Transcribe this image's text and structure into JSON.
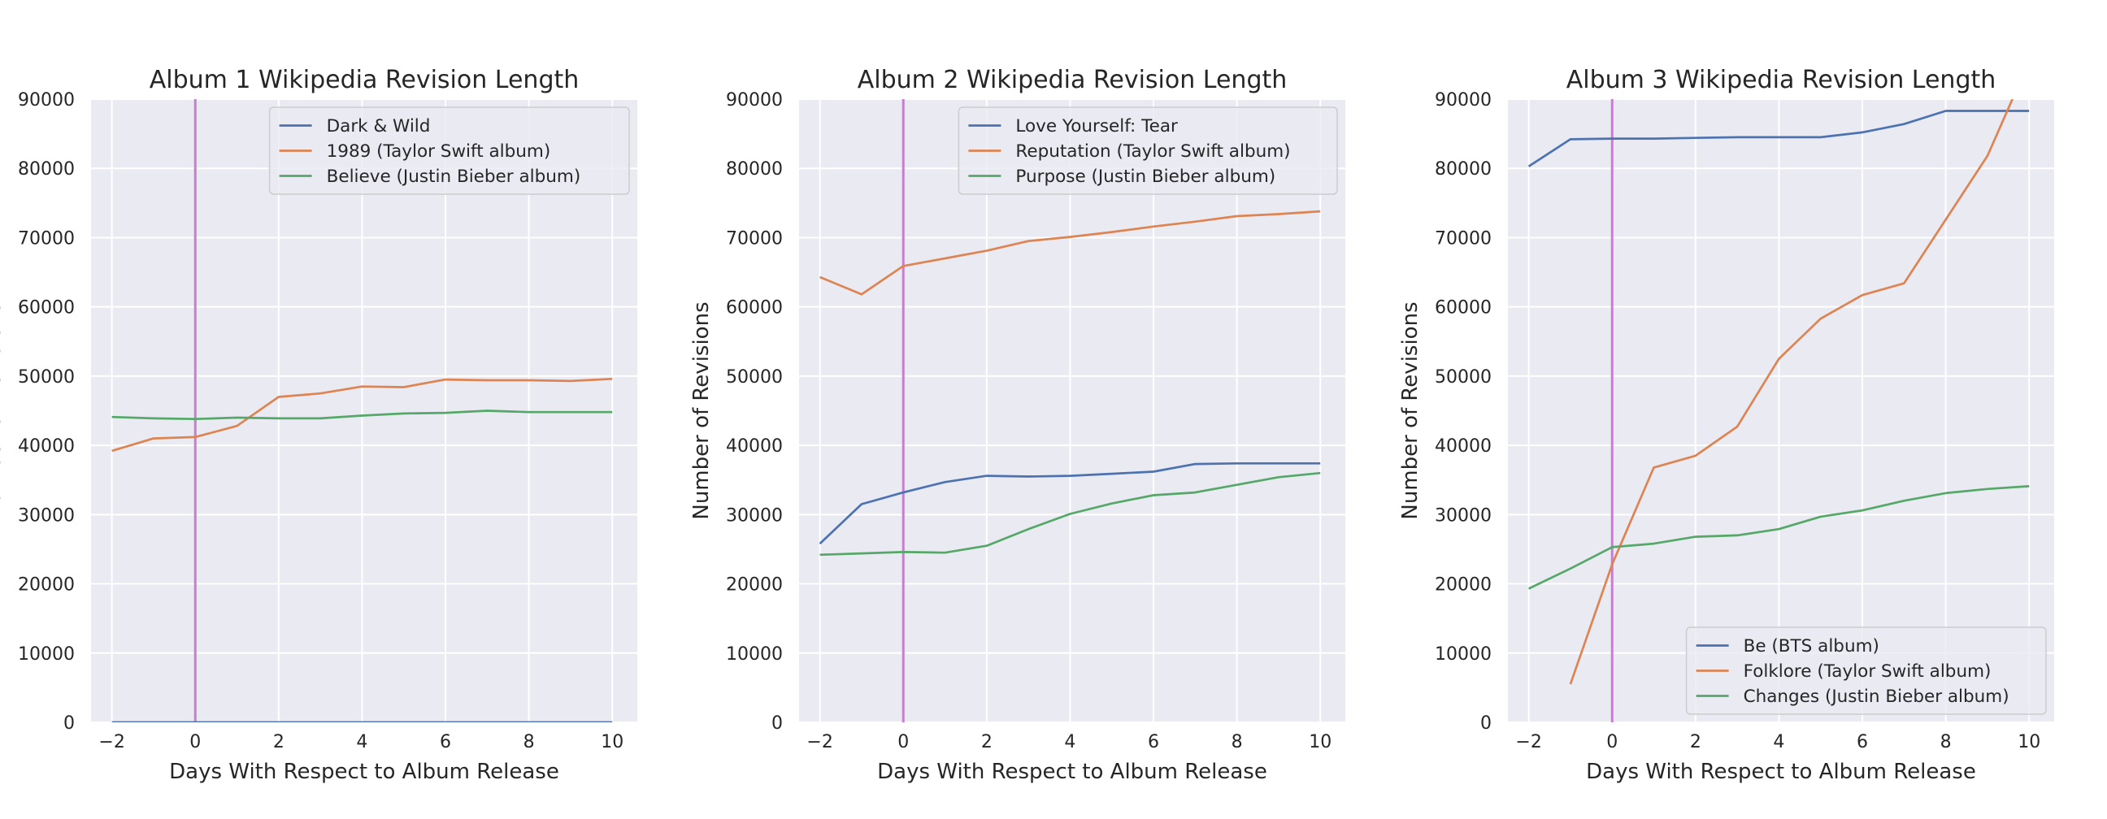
{
  "chart_data": [
    {
      "type": "line",
      "title": "Album 1 Wikipedia Revision Length",
      "xlabel": "Days With Respect to Album Release",
      "ylabel": "Number of Revisions",
      "xlim": [
        -2.5,
        10.6
      ],
      "ylim": [
        0,
        90000
      ],
      "xticks": [
        -2,
        0,
        2,
        4,
        6,
        8,
        10
      ],
      "xtick_labels": [
        "−2",
        "0",
        "2",
        "4",
        "6",
        "8",
        "10"
      ],
      "yticks": [
        0,
        10000,
        20000,
        30000,
        40000,
        50000,
        60000,
        70000,
        80000,
        90000
      ],
      "ytick_labels": [
        "0",
        "10000",
        "20000",
        "30000",
        "40000",
        "50000",
        "60000",
        "70000",
        "80000",
        "90000"
      ],
      "vline": {
        "x": 0,
        "color": "#c67fcf"
      },
      "grid": true,
      "legend_position": "top-right",
      "x": [
        -2,
        -1,
        0,
        1,
        2,
        3,
        4,
        5,
        6,
        7,
        8,
        9,
        10
      ],
      "series": [
        {
          "name": "Dark & Wild",
          "color": "#4c72b0",
          "values": [
            0,
            0,
            0,
            0,
            0,
            0,
            0,
            0,
            0,
            0,
            0,
            0,
            0
          ]
        },
        {
          "name": "1989 (Taylor Swift album)",
          "color": "#dd8452",
          "values": [
            39200,
            41000,
            41200,
            42800,
            47000,
            47500,
            48500,
            48400,
            49500,
            49400,
            49400,
            49300,
            49600
          ]
        },
        {
          "name": "Believe (Justin Bieber album)",
          "color": "#55a868",
          "values": [
            44100,
            43900,
            43800,
            44000,
            43900,
            43900,
            44300,
            44600,
            44700,
            45000,
            44800,
            44800,
            44800
          ]
        }
      ]
    },
    {
      "type": "line",
      "title": "Album 2 Wikipedia Revision Length",
      "xlabel": "Days With Respect to Album Release",
      "ylabel": "Number of Revisions",
      "xlim": [
        -2.5,
        10.6
      ],
      "ylim": [
        0,
        90000
      ],
      "xticks": [
        -2,
        0,
        2,
        4,
        6,
        8,
        10
      ],
      "xtick_labels": [
        "−2",
        "0",
        "2",
        "4",
        "6",
        "8",
        "10"
      ],
      "yticks": [
        0,
        10000,
        20000,
        30000,
        40000,
        50000,
        60000,
        70000,
        80000,
        90000
      ],
      "ytick_labels": [
        "0",
        "10000",
        "20000",
        "30000",
        "40000",
        "50000",
        "60000",
        "70000",
        "80000",
        "90000"
      ],
      "vline": {
        "x": 0,
        "color": "#c67fcf"
      },
      "grid": true,
      "legend_position": "top-right",
      "x": [
        -2,
        -1,
        0,
        1,
        2,
        3,
        4,
        5,
        6,
        7,
        8,
        9,
        10
      ],
      "series": [
        {
          "name": "Love Yourself: Tear",
          "color": "#4c72b0",
          "values": [
            25800,
            31500,
            33200,
            34700,
            35600,
            35500,
            35600,
            35900,
            36200,
            37300,
            37400,
            37400,
            37400
          ]
        },
        {
          "name": "Reputation (Taylor Swift album)",
          "color": "#dd8452",
          "values": [
            64300,
            61800,
            65900,
            67000,
            68100,
            69500,
            70100,
            70800,
            71600,
            72300,
            73100,
            73400,
            73800
          ]
        },
        {
          "name": "Purpose (Justin Bieber album)",
          "color": "#55a868",
          "values": [
            24200,
            24400,
            24600,
            24500,
            25500,
            27900,
            30100,
            31600,
            32800,
            33200,
            34300,
            35400,
            36000
          ]
        }
      ]
    },
    {
      "type": "line",
      "title": "Album 3 Wikipedia Revision Length",
      "xlabel": "Days With Respect to Album Release",
      "ylabel": "Number of Revisions",
      "xlim": [
        -2.5,
        10.6
      ],
      "ylim": [
        0,
        90000
      ],
      "xticks": [
        -2,
        0,
        2,
        4,
        6,
        8,
        10
      ],
      "xtick_labels": [
        "−2",
        "0",
        "2",
        "4",
        "6",
        "8",
        "10"
      ],
      "yticks": [
        0,
        10000,
        20000,
        30000,
        40000,
        50000,
        60000,
        70000,
        80000,
        90000
      ],
      "ytick_labels": [
        "0",
        "10000",
        "20000",
        "30000",
        "40000",
        "50000",
        "60000",
        "70000",
        "80000",
        "90000"
      ],
      "vline": {
        "x": 0,
        "color": "#c67fcf"
      },
      "grid": true,
      "legend_position": "bottom-right",
      "x": [
        -2,
        -1,
        0,
        1,
        2,
        3,
        4,
        5,
        6,
        7,
        8,
        9,
        10
      ],
      "series": [
        {
          "name": "Be (BTS album)",
          "color": "#4c72b0",
          "values": [
            80300,
            84200,
            84300,
            84300,
            84400,
            84500,
            84500,
            84500,
            85200,
            86400,
            88300,
            88300,
            88300
          ]
        },
        {
          "name": "Folklore (Taylor Swift album)",
          "color": "#dd8452",
          "x": [
            -1,
            0,
            1,
            2,
            3,
            4,
            5,
            6,
            7,
            8,
            9,
            9.6
          ],
          "values": [
            5500,
            22800,
            36800,
            38500,
            42700,
            52500,
            58300,
            61700,
            63400,
            72600,
            81800,
            90000
          ]
        },
        {
          "name": "Changes (Justin Bieber album)",
          "color": "#55a868",
          "values": [
            19300,
            22200,
            25300,
            25800,
            26800,
            27000,
            27900,
            29700,
            30600,
            32000,
            33100,
            33700,
            34100
          ]
        }
      ]
    }
  ]
}
